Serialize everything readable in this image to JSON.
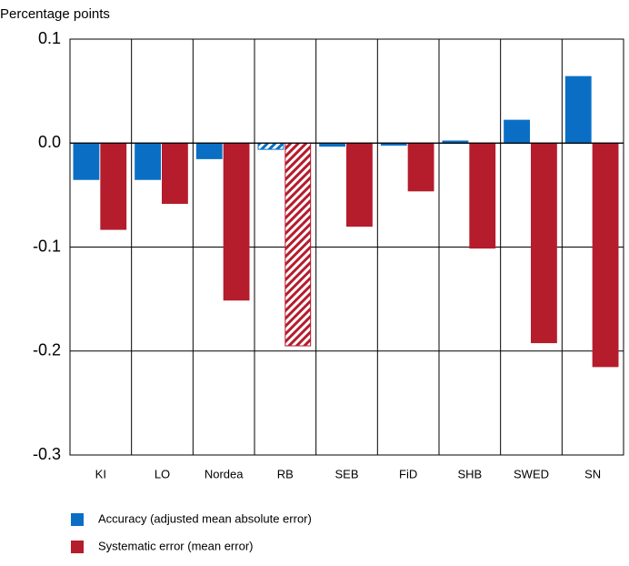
{
  "chart_data": {
    "type": "bar",
    "y_label": "Percentage points",
    "categories": [
      "KI",
      "LO",
      "Nordea",
      "RB",
      "SEB",
      "FiD",
      "SHB",
      "SWED",
      "SN"
    ],
    "series": [
      {
        "name": "Accuracy (adjusted mean absolute error)",
        "color": "#0a6fc4",
        "values": [
          -0.035,
          -0.035,
          -0.015,
          -0.006,
          -0.003,
          -0.002,
          0.002,
          0.022,
          0.064
        ]
      },
      {
        "name": "Systematic error (mean error)",
        "color": "#b51c2c",
        "values": [
          -0.083,
          -0.058,
          -0.151,
          -0.195,
          -0.08,
          -0.046,
          -0.101,
          -0.192,
          -0.215
        ]
      }
    ],
    "hatched_category": "RB",
    "ylim": [
      -0.3,
      0.1
    ],
    "yticks": [
      0.1,
      {
        "value": 0,
        "label": "0.0"
      },
      -0.1,
      -0.2,
      -0.3
    ],
    "grid": true
  }
}
